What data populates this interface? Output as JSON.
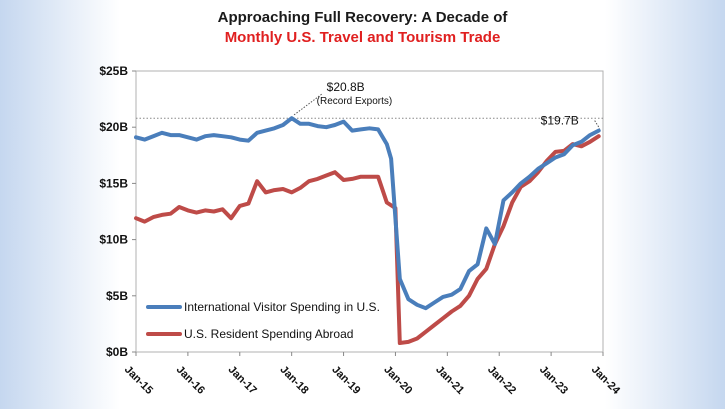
{
  "chart_data": {
    "type": "line",
    "title_line1": "Approaching Full Recovery: A Decade of",
    "title_line2": "Monthly U.S. Travel and Tourism Trade",
    "xlabel": "",
    "ylabel": "",
    "ylim": [
      0,
      25
    ],
    "y_unit": "billions of USD",
    "y_ticks": [
      "$0B",
      "$5B",
      "$10B",
      "$15B",
      "$20B",
      "$25B"
    ],
    "y_tick_values": [
      0,
      5,
      10,
      15,
      20,
      25
    ],
    "x_ticks": [
      "Jan-15",
      "Jan-16",
      "Jan-17",
      "Jan-18",
      "Jan-19",
      "Jan-20",
      "Jan-21",
      "Jan-22",
      "Jan-23",
      "Jan-24"
    ],
    "xlim": [
      "2015-01",
      "2024-01"
    ],
    "grid": false,
    "legend_position": "bottom-left",
    "colors": {
      "series0": "#4a7ebb",
      "series1": "#be4b48",
      "title_accent": "#e02020"
    },
    "series": [
      {
        "name": "International Visitor Spending in U.S.",
        "points": [
          [
            "2015-01",
            19.1
          ],
          [
            "2015-03",
            18.9
          ],
          [
            "2015-05",
            19.2
          ],
          [
            "2015-07",
            19.5
          ],
          [
            "2015-09",
            19.3
          ],
          [
            "2015-11",
            19.3
          ],
          [
            "2016-01",
            19.1
          ],
          [
            "2016-03",
            18.9
          ],
          [
            "2016-05",
            19.2
          ],
          [
            "2016-07",
            19.3
          ],
          [
            "2016-09",
            19.2
          ],
          [
            "2016-11",
            19.1
          ],
          [
            "2017-01",
            18.9
          ],
          [
            "2017-03",
            18.8
          ],
          [
            "2017-05",
            19.5
          ],
          [
            "2017-07",
            19.7
          ],
          [
            "2017-09",
            19.9
          ],
          [
            "2017-11",
            20.2
          ],
          [
            "2018-01",
            20.8
          ],
          [
            "2018-03",
            20.3
          ],
          [
            "2018-05",
            20.3
          ],
          [
            "2018-07",
            20.1
          ],
          [
            "2018-09",
            20.0
          ],
          [
            "2018-11",
            20.2
          ],
          [
            "2019-01",
            20.5
          ],
          [
            "2019-03",
            19.7
          ],
          [
            "2019-05",
            19.8
          ],
          [
            "2019-07",
            19.9
          ],
          [
            "2019-09",
            19.8
          ],
          [
            "2019-11",
            18.5
          ],
          [
            "2019-12",
            17.2
          ],
          [
            "2020-02",
            6.5
          ],
          [
            "2020-04",
            4.7
          ],
          [
            "2020-06",
            4.2
          ],
          [
            "2020-08",
            3.9
          ],
          [
            "2020-10",
            4.4
          ],
          [
            "2020-12",
            4.9
          ],
          [
            "2021-02",
            5.1
          ],
          [
            "2021-04",
            5.6
          ],
          [
            "2021-06",
            7.2
          ],
          [
            "2021-08",
            7.8
          ],
          [
            "2021-10",
            11.0
          ],
          [
            "2021-12",
            9.6
          ],
          [
            "2022-02",
            13.5
          ],
          [
            "2022-04",
            14.2
          ],
          [
            "2022-06",
            15.0
          ],
          [
            "2022-08",
            15.6
          ],
          [
            "2022-10",
            16.3
          ],
          [
            "2022-12",
            16.8
          ],
          [
            "2023-02",
            17.3
          ],
          [
            "2023-04",
            17.6
          ],
          [
            "2023-06",
            18.4
          ],
          [
            "2023-08",
            18.7
          ],
          [
            "2023-10",
            19.3
          ],
          [
            "2023-12",
            19.7
          ]
        ]
      },
      {
        "name": "U.S. Resident Spending Abroad",
        "points": [
          [
            "2015-01",
            11.9
          ],
          [
            "2015-03",
            11.6
          ],
          [
            "2015-05",
            12.0
          ],
          [
            "2015-07",
            12.2
          ],
          [
            "2015-09",
            12.3
          ],
          [
            "2015-11",
            12.9
          ],
          [
            "2016-01",
            12.6
          ],
          [
            "2016-03",
            12.4
          ],
          [
            "2016-05",
            12.6
          ],
          [
            "2016-07",
            12.5
          ],
          [
            "2016-09",
            12.7
          ],
          [
            "2016-11",
            11.9
          ],
          [
            "2017-01",
            13.0
          ],
          [
            "2017-03",
            13.2
          ],
          [
            "2017-05",
            15.2
          ],
          [
            "2017-07",
            14.2
          ],
          [
            "2017-09",
            14.4
          ],
          [
            "2017-11",
            14.5
          ],
          [
            "2018-01",
            14.2
          ],
          [
            "2018-03",
            14.6
          ],
          [
            "2018-05",
            15.2
          ],
          [
            "2018-07",
            15.4
          ],
          [
            "2018-09",
            15.7
          ],
          [
            "2018-11",
            16.0
          ],
          [
            "2019-01",
            15.3
          ],
          [
            "2019-03",
            15.4
          ],
          [
            "2019-05",
            15.6
          ],
          [
            "2019-07",
            15.6
          ],
          [
            "2019-09",
            15.6
          ],
          [
            "2019-11",
            13.3
          ],
          [
            "2020-01",
            12.8
          ],
          [
            "2020-02",
            0.8
          ],
          [
            "2020-04",
            0.9
          ],
          [
            "2020-06",
            1.2
          ],
          [
            "2020-08",
            1.8
          ],
          [
            "2020-10",
            2.4
          ],
          [
            "2020-12",
            3.0
          ],
          [
            "2021-02",
            3.6
          ],
          [
            "2021-04",
            4.1
          ],
          [
            "2021-06",
            5.0
          ],
          [
            "2021-08",
            6.5
          ],
          [
            "2021-10",
            7.4
          ],
          [
            "2021-12",
            9.6
          ],
          [
            "2022-02",
            11.2
          ],
          [
            "2022-04",
            13.3
          ],
          [
            "2022-06",
            14.7
          ],
          [
            "2022-08",
            15.2
          ],
          [
            "2022-10",
            16.0
          ],
          [
            "2022-12",
            17.0
          ],
          [
            "2023-02",
            17.8
          ],
          [
            "2023-04",
            17.9
          ],
          [
            "2023-06",
            18.5
          ],
          [
            "2023-08",
            18.3
          ],
          [
            "2023-10",
            18.7
          ],
          [
            "2023-12",
            19.2
          ]
        ]
      }
    ],
    "annotations": [
      {
        "label": "$20.8B",
        "sublabel": "(Record Exports)",
        "x": "2018-01",
        "y": 20.8
      },
      {
        "label": "$19.7B",
        "x": "2023-12",
        "y": 19.7
      }
    ]
  }
}
